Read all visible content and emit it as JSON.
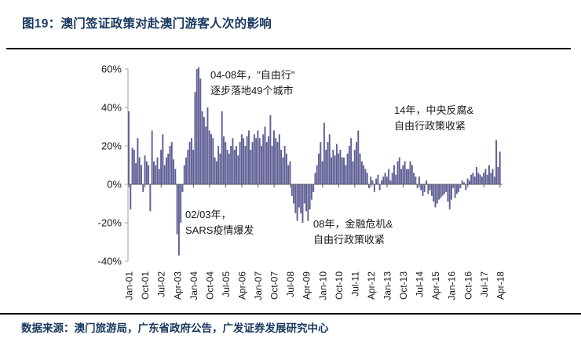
{
  "header": {
    "title": "图19：澳门签证政策对赴澳门游客人次的影响"
  },
  "footer": {
    "source": "数据来源：澳门旅游局，广东省政府公告，广发证券发展研究中心"
  },
  "colors": {
    "title_navy": "#17375e",
    "bar": "#5f5f96",
    "divider": "#000000",
    "axis_gray": "#b0b0b0",
    "zero_axis": "#595959"
  },
  "chart_data": {
    "type": "bar",
    "title": "",
    "xlabel": "",
    "ylabel": "",
    "ylim": [
      -40,
      60
    ],
    "grid": false,
    "legend": false,
    "y_ticks": [
      60,
      40,
      20,
      0,
      -20,
      -40
    ],
    "y_tick_labels": [
      "60%",
      "40%",
      "20%",
      "0%",
      "-20%",
      "-40%"
    ],
    "x_tick_labels": [
      "Jan-01",
      "Oct-01",
      "Jul-02",
      "Apr-03",
      "Jan-04",
      "Oct-04",
      "Jul-05",
      "Apr-06",
      "Jan-07",
      "Oct-07",
      "Jul-08",
      "Apr-09",
      "Jan-10",
      "Oct-10",
      "Jul-11",
      "Apr-12",
      "Jan-13",
      "Oct-13",
      "Jul-14",
      "Apr-15",
      "Jan-16",
      "Oct-16",
      "Jul-17",
      "Apr-18"
    ],
    "x_tick_interval_months": 9,
    "x_start": "Jan-01",
    "x_end": "Apr-18",
    "unit": "percent YoY",
    "bar_color": "#5f5f96",
    "values": [
      38,
      -13,
      19,
      18,
      11,
      24,
      14,
      10,
      -4,
      15,
      12,
      10,
      -14,
      28,
      12,
      10,
      14,
      8,
      18,
      26,
      10,
      14,
      16,
      20,
      22,
      13,
      8,
      -26,
      -37,
      -20,
      -4,
      10,
      14,
      18,
      22,
      24,
      18,
      48,
      60,
      61,
      55,
      38,
      35,
      30,
      40,
      28,
      26,
      24,
      14,
      12,
      20,
      16,
      38,
      25,
      22,
      18,
      16,
      20,
      24,
      18,
      20,
      15,
      22,
      26,
      24,
      20,
      25,
      28,
      18,
      22,
      26,
      24,
      28,
      24,
      20,
      26,
      30,
      22,
      25,
      36,
      20,
      28,
      24,
      22,
      26,
      18,
      14,
      20,
      16,
      10,
      12,
      -6,
      -10,
      -15,
      -19,
      -12,
      -15,
      -20,
      -10,
      -14,
      -19,
      -13,
      -8,
      -4,
      6,
      10,
      16,
      22,
      12,
      32,
      18,
      22,
      26,
      14,
      18,
      15,
      21,
      16,
      18,
      14,
      14,
      10,
      16,
      20,
      24,
      12,
      18,
      22,
      28,
      16,
      12,
      10,
      8,
      6,
      -2,
      4,
      2,
      -4,
      3,
      5,
      -3,
      2,
      4,
      6,
      4,
      8,
      2,
      6,
      10,
      5,
      12,
      14,
      8,
      10,
      12,
      8,
      8,
      12,
      10,
      6,
      4,
      -2,
      4,
      -3,
      -6,
      -4,
      2,
      -5,
      -3,
      -6,
      -9,
      -12,
      -10,
      -8,
      -7,
      -6,
      -5,
      -4,
      -9,
      -13,
      -8,
      -2,
      -7,
      -5,
      -4,
      -2,
      2,
      1,
      -3,
      3,
      2,
      5,
      6,
      4,
      9,
      6,
      5,
      4,
      6,
      8,
      5,
      10,
      6,
      8,
      4,
      23,
      9,
      17
    ],
    "annotations": [
      {
        "id": "ivs",
        "lines": [
          "04-08年，\"自由行\"",
          "逐步落地49个城市"
        ]
      },
      {
        "id": "anticorruption",
        "lines": [
          "14年，中央反腐&",
          "自由行政策收紧"
        ]
      },
      {
        "id": "sars",
        "lines": [
          "02/03年，",
          "SARS疫情爆发"
        ]
      },
      {
        "id": "crisis08",
        "lines": [
          "08年，金融危机&",
          "自由行政策收紧"
        ]
      }
    ]
  }
}
